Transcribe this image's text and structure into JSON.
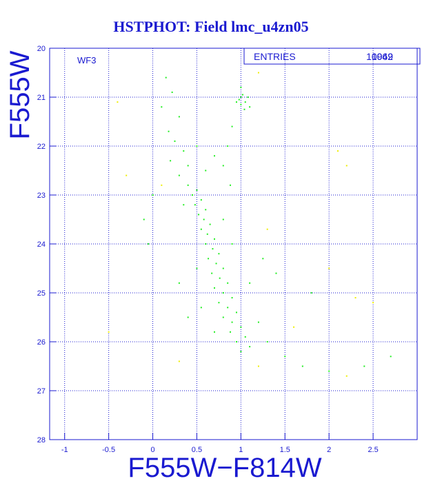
{
  "chart_data": {
    "type": "scatter",
    "title": "HSTPHOT: Field lmc_u4zn05",
    "x_label": "F555W−F814W",
    "y_label": "F555W",
    "annotation": "WF3",
    "stats_label": "ENTRIES",
    "stats_values": [
      "10049",
      "1962"
    ],
    "xlim": [
      -1.17,
      3.0
    ],
    "ylim": [
      28,
      20
    ],
    "xticks": [
      -1,
      -0.5,
      0,
      0.5,
      1,
      1.5,
      2,
      2.5
    ],
    "yticks": [
      20,
      21,
      22,
      23,
      24,
      25,
      26,
      27,
      28
    ],
    "grid": true,
    "series": [
      {
        "color": "#22ee22",
        "x": [
          0.15,
          0.22,
          0.1,
          0.3,
          0.18,
          0.25,
          0.35,
          0.2,
          0.4,
          0.3,
          1.0,
          1.05,
          0.98,
          1.02,
          1.08,
          1.0,
          0.95,
          1.04,
          1.1,
          1.0,
          0.9,
          0.85,
          0.8,
          0.88,
          0.4,
          0.5,
          0.45,
          0.55,
          0.48,
          0.6,
          0.52,
          0.58,
          0.65,
          0.55,
          0.62,
          0.7,
          0.6,
          0.68,
          0.75,
          0.63,
          0.72,
          0.8,
          0.67,
          0.76,
          0.85,
          0.7,
          0.8,
          0.9,
          0.75,
          0.85,
          0.95,
          0.8,
          0.9,
          1.0,
          0.88,
          1.05,
          0.95,
          1.1,
          1.0,
          0.35,
          0.8,
          0.9,
          0.5,
          1.1,
          0.55,
          1.2,
          0.7,
          1.3,
          1.5,
          1.7,
          2.0,
          2.4,
          2.7,
          -0.1,
          -0.05,
          0.0,
          1.25,
          1.4,
          0.3,
          0.4,
          1.8,
          0.6,
          0.7,
          0.5
        ],
        "y": [
          20.6,
          20.9,
          21.2,
          21.4,
          21.7,
          21.9,
          22.1,
          22.3,
          22.4,
          22.6,
          21.0,
          21.1,
          21.05,
          20.95,
          21.0,
          21.15,
          21.1,
          21.25,
          21.2,
          20.8,
          21.6,
          22.0,
          22.4,
          22.8,
          22.8,
          22.9,
          23.0,
          23.1,
          23.2,
          23.3,
          23.4,
          23.5,
          23.6,
          23.7,
          23.8,
          23.9,
          24.0,
          24.1,
          24.2,
          24.3,
          24.4,
          24.5,
          24.6,
          24.7,
          24.8,
          24.9,
          25.0,
          25.1,
          25.2,
          25.3,
          25.4,
          25.5,
          25.6,
          25.7,
          25.8,
          25.9,
          26.0,
          26.1,
          26.2,
          23.2,
          23.5,
          24.0,
          24.5,
          24.8,
          25.3,
          25.6,
          25.8,
          26.0,
          26.3,
          26.5,
          26.6,
          26.5,
          26.3,
          23.5,
          24.0,
          23.0,
          24.3,
          24.6,
          24.8,
          25.5,
          25.0,
          22.5,
          22.2,
          22.0
        ]
      },
      {
        "color": "#eeee00",
        "x": [
          -0.4,
          0.1,
          -0.3,
          2.2,
          2.1,
          1.3,
          2.0,
          2.3,
          2.2,
          1.2,
          0.3,
          -0.5,
          1.6,
          2.5,
          1.2
        ],
        "y": [
          21.1,
          22.8,
          22.6,
          22.4,
          22.1,
          23.7,
          24.5,
          25.1,
          26.7,
          26.5,
          26.4,
          25.8,
          25.7,
          25.2,
          20.5
        ]
      }
    ]
  }
}
